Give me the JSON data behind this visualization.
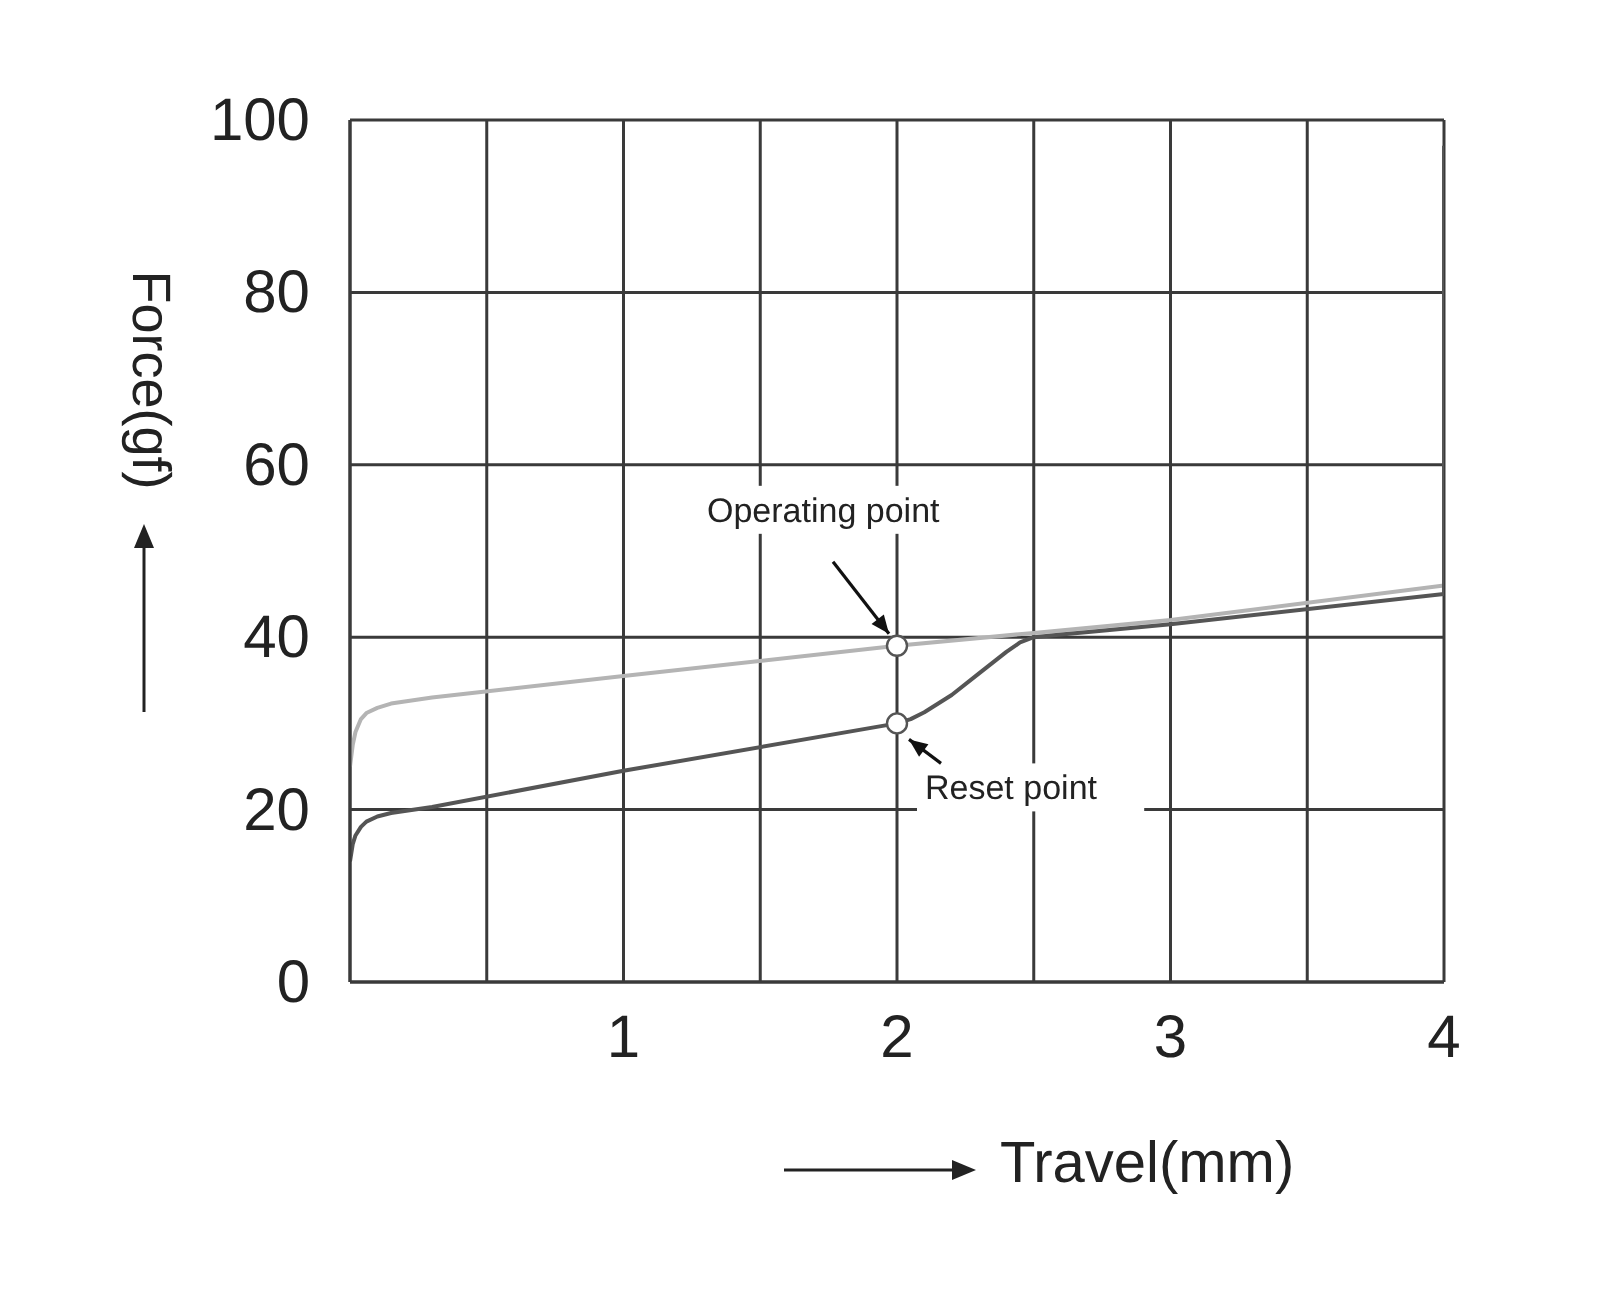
{
  "chart_data": {
    "type": "line",
    "xlabel": "Travel(mm)",
    "ylabel": "Force(gf)",
    "xlim": [
      0,
      4
    ],
    "xticks": [
      {
        "value": 0,
        "label": null
      },
      {
        "value": 0.5,
        "label": null
      },
      1,
      {
        "value": 1.5,
        "label": null
      },
      2,
      {
        "value": 2.5,
        "label": null
      },
      3,
      {
        "value": 3.5,
        "label": null
      },
      4
    ],
    "ylim": [
      0,
      100
    ],
    "yticks": [
      0,
      20,
      40,
      60,
      80,
      100
    ],
    "grid": true,
    "legend": false,
    "marker": "none",
    "line_style": "solid",
    "series": [
      {
        "color": "#b4b4b4",
        "x": [
          0,
          0.01,
          0.02,
          0.04,
          0.06,
          0.1,
          0.15,
          0.3,
          1,
          2,
          2.5,
          3,
          4
        ],
        "values": [
          25,
          27.5,
          29,
          30.5,
          31.2,
          31.8,
          32.3,
          33,
          35.5,
          39,
          40.5,
          42,
          46
        ]
      },
      {
        "color": "#555555",
        "x": [
          0,
          0.01,
          0.02,
          0.04,
          0.06,
          0.1,
          0.15,
          0.3,
          1,
          2,
          2.05,
          2.1,
          2.2,
          2.3,
          2.4,
          2.45,
          2.5,
          2.6,
          2.7,
          3,
          4,
          4
        ],
        "values": [
          14,
          16,
          17,
          18,
          18.6,
          19.2,
          19.6,
          20.3,
          24.5,
          30,
          30.5,
          31.3,
          33.3,
          35.8,
          38.3,
          39.4,
          40,
          40.3,
          40.6,
          41.5,
          45,
          97
        ]
      }
    ],
    "annotations": [
      {
        "text": "Operating point",
        "x": 2,
        "y": 39
      },
      {
        "text": "Reset point",
        "x": 2,
        "y": 30
      }
    ]
  }
}
